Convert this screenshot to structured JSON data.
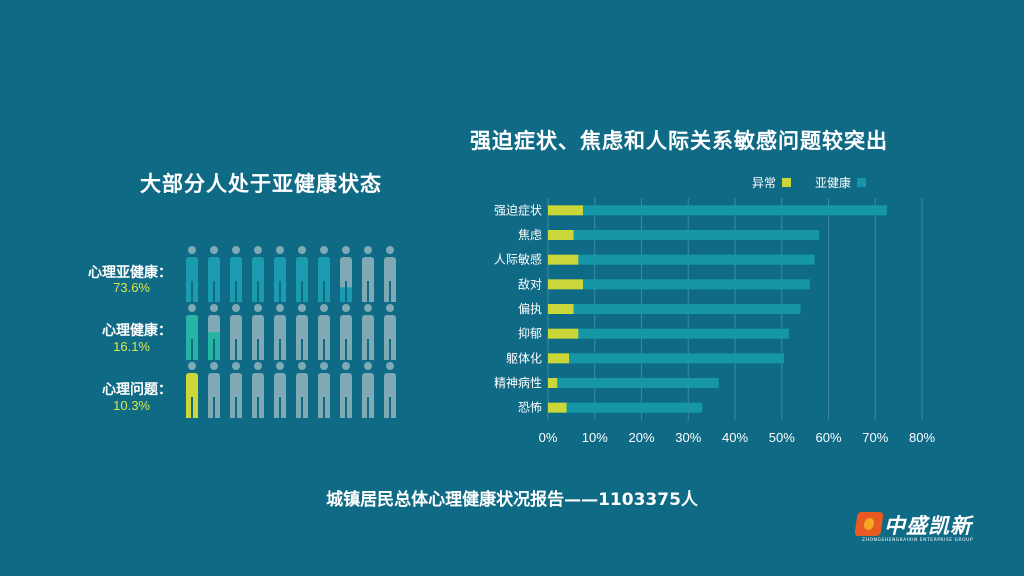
{
  "left_panel": {
    "title": "大部分人处于亚健康状态",
    "rows": [
      {
        "label": "心理亚健康：",
        "percent_text": "73.6%",
        "value": 73.6,
        "color": "#1a9bb0"
      },
      {
        "label": "心理健康：",
        "percent_text": "16.1%",
        "value": 16.1,
        "color": "#27b5a3"
      },
      {
        "label": "心理问题：",
        "percent_text": "10.3%",
        "value": 10.3,
        "color": "#c9d838"
      }
    ],
    "people_per_row": 10,
    "inactive_color": "#7fa9b4"
  },
  "right_panel": {
    "title": "强迫症状、焦虑和人际关系敏感问题较突出"
  },
  "chart_data": {
    "type": "bar",
    "orientation": "horizontal",
    "stacked": true,
    "title": "强迫症状、焦虑和人际关系敏感问题较突出",
    "categories": [
      "强迫症状",
      "焦虑",
      "人际敏感",
      "敌对",
      "偏执",
      "抑郁",
      "躯体化",
      "精神病性",
      "恐怖"
    ],
    "series": [
      {
        "name": "异常",
        "color": "#c9d838",
        "values": [
          7.5,
          5.5,
          6.5,
          7.5,
          5.5,
          6.5,
          4.5,
          2.0,
          4.0
        ]
      },
      {
        "name": "亚健康",
        "color": "#1597a8",
        "values": [
          65,
          52.5,
          50.5,
          48.5,
          48.5,
          45,
          46,
          34.5,
          29
        ]
      }
    ],
    "x_ticks": [
      "0%",
      "10%",
      "20%",
      "30%",
      "40%",
      "50%",
      "60%",
      "70%",
      "80%"
    ],
    "xlim": [
      0,
      80
    ],
    "grid": true,
    "legend_position": "top-right"
  },
  "footer": {
    "text": "城镇居民总体心理健康状况报告——1103375人"
  },
  "logo": {
    "name": "中盛凯新",
    "subtitle": "ZHONGSHENGKAIXIN ENTERPRISE GROUP"
  }
}
